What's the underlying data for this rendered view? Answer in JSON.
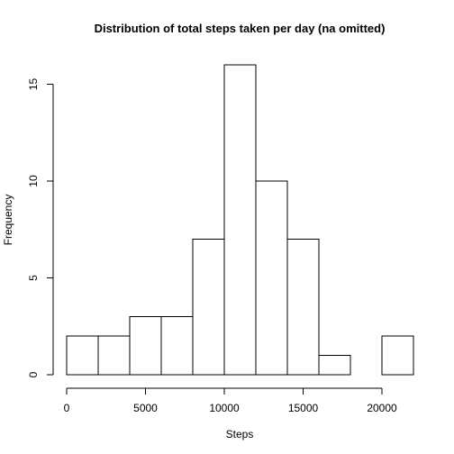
{
  "chart_data": {
    "type": "bar",
    "title": "Distribution of total steps taken per day (na omitted)",
    "xlabel": "Steps",
    "ylabel": "Frequency",
    "bins": [
      {
        "from": 0,
        "to": 2000,
        "value": 2
      },
      {
        "from": 2000,
        "to": 4000,
        "value": 2
      },
      {
        "from": 4000,
        "to": 6000,
        "value": 3
      },
      {
        "from": 6000,
        "to": 8000,
        "value": 3
      },
      {
        "from": 8000,
        "to": 10000,
        "value": 7
      },
      {
        "from": 10000,
        "to": 12000,
        "value": 16
      },
      {
        "from": 12000,
        "to": 14000,
        "value": 10
      },
      {
        "from": 14000,
        "to": 16000,
        "value": 7
      },
      {
        "from": 16000,
        "to": 18000,
        "value": 1
      },
      {
        "from": 18000,
        "to": 20000,
        "value": 0
      },
      {
        "from": 20000,
        "to": 22000,
        "value": 2
      }
    ],
    "xlim": [
      0,
      22000
    ],
    "ylim": [
      0,
      16
    ],
    "xticks": [
      0,
      5000,
      10000,
      15000,
      20000
    ],
    "yticks": [
      0,
      5,
      10,
      15
    ],
    "xtick_labels": [
      "0",
      "5000",
      "10000",
      "15000",
      "20000"
    ],
    "ytick_labels": [
      "0",
      "5",
      "10",
      "15"
    ],
    "grid": false,
    "bar_color": "#ffffff",
    "edge_color": "#000000"
  }
}
